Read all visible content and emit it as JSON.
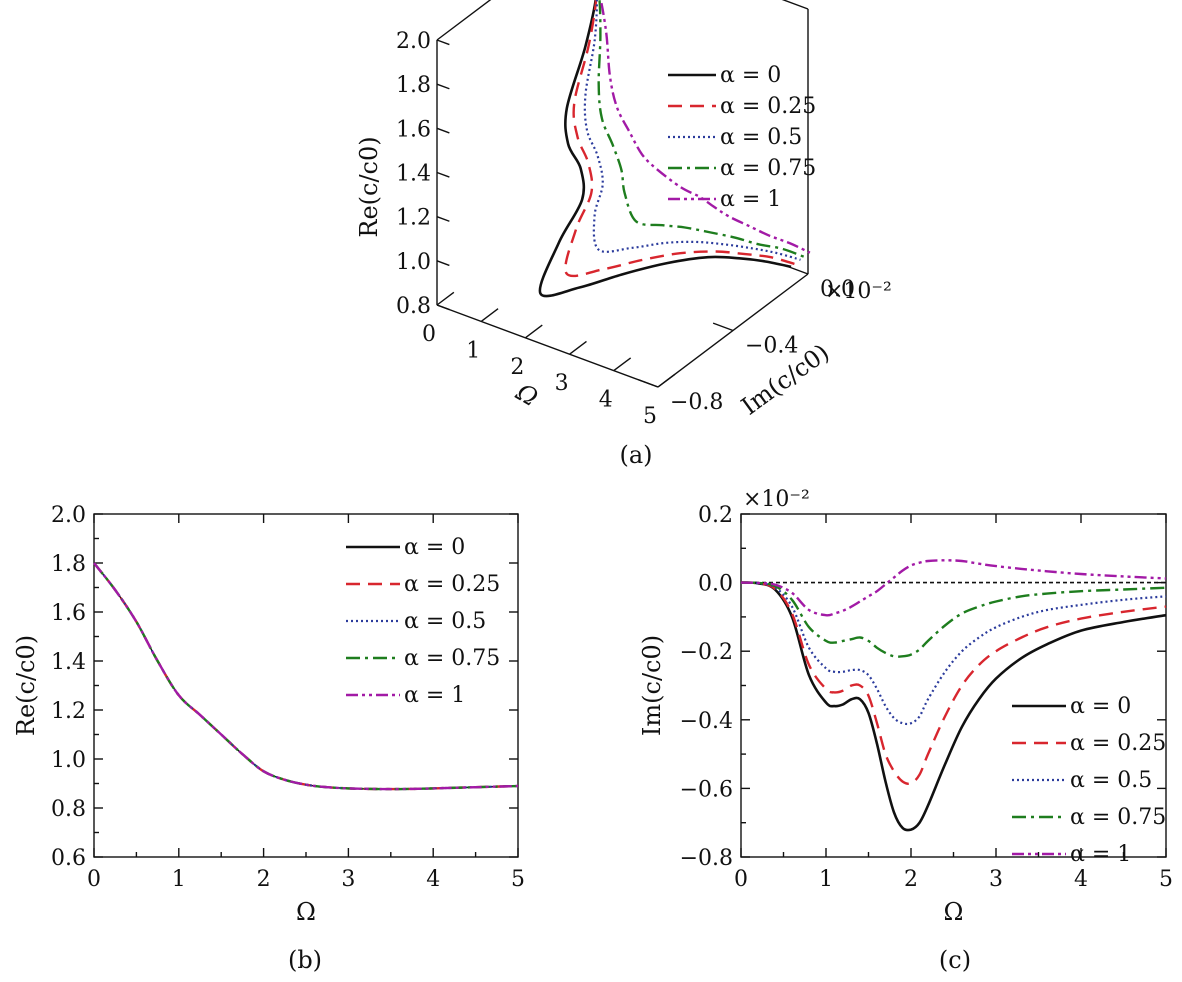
{
  "colors": {
    "alpha_0": "#111111",
    "alpha_0_25": "#d8262e",
    "alpha_0_5": "#2b3b9c",
    "alpha_0_75": "#1e7d1e",
    "alpha_1": "#a21aa6"
  },
  "captions": {
    "a": "(a)",
    "b": "(b)",
    "c": "(c)"
  },
  "chart_data": [
    {
      "id": "a",
      "type": "line",
      "projection": "3d",
      "zlabel": "Re(c/c0)",
      "xlabel": "Ω",
      "ylabel": "Im(c/c0)",
      "y_multiplier": "×10⁻²",
      "zlim": [
        0.8,
        2.0
      ],
      "xlim": [
        0,
        5
      ],
      "ylim": [
        -0.8,
        0.0
      ],
      "z_ticks": [
        "0.8",
        "1.0",
        "1.2",
        "1.4",
        "1.6",
        "1.8",
        "2.0"
      ],
      "x_ticks": [
        "0",
        "1",
        "2",
        "3",
        "4",
        "5"
      ],
      "y_ticks": [
        "0.0",
        "−0.4",
        "−0.8"
      ],
      "legend": [
        "α = 0",
        "α = 0.25",
        "α = 0.5",
        "α = 0.75",
        "α = 1"
      ],
      "legend_position": "top-right",
      "series": [
        {
          "name": "α = 0",
          "x": [
            0.05,
            0.3,
            0.6,
            0.9,
            1.1,
            1.3,
            1.5,
            1.7,
            2.0,
            2.3,
            2.6,
            3.0,
            3.5,
            4.0,
            4.5,
            5.0
          ],
          "y": [
            0.0,
            -0.02,
            -0.15,
            -0.32,
            -0.36,
            -0.34,
            -0.38,
            -0.55,
            -0.72,
            -0.58,
            -0.42,
            -0.28,
            -0.18,
            -0.13,
            -0.11,
            -0.09
          ],
          "z": [
            1.78,
            1.74,
            1.6,
            1.45,
            1.33,
            1.22,
            1.12,
            1.05,
            0.95,
            0.91,
            0.89,
            0.88,
            0.88,
            0.88,
            0.89,
            0.89
          ]
        },
        {
          "name": "α = 0.25",
          "x": [
            0.05,
            0.3,
            0.6,
            0.9,
            1.1,
            1.3,
            1.5,
            1.7,
            2.0,
            2.3,
            2.6,
            3.0,
            3.5,
            4.0,
            4.5,
            5.0
          ],
          "y": [
            0.0,
            -0.02,
            -0.13,
            -0.28,
            -0.31,
            -0.3,
            -0.33,
            -0.46,
            -0.58,
            -0.45,
            -0.32,
            -0.21,
            -0.14,
            -0.1,
            -0.08,
            -0.07
          ],
          "z": [
            1.78,
            1.74,
            1.6,
            1.45,
            1.33,
            1.22,
            1.12,
            1.05,
            0.95,
            0.91,
            0.89,
            0.88,
            0.88,
            0.88,
            0.89,
            0.89
          ]
        },
        {
          "name": "α = 0.5",
          "x": [
            0.05,
            0.3,
            0.6,
            0.9,
            1.1,
            1.3,
            1.5,
            1.7,
            2.0,
            2.3,
            2.6,
            3.0,
            3.5,
            4.0,
            4.5,
            5.0
          ],
          "y": [
            0.0,
            -0.02,
            -0.1,
            -0.22,
            -0.26,
            -0.25,
            -0.27,
            -0.36,
            -0.41,
            -0.3,
            -0.2,
            -0.13,
            -0.09,
            -0.06,
            -0.05,
            -0.04
          ],
          "z": [
            1.78,
            1.74,
            1.6,
            1.45,
            1.33,
            1.22,
            1.12,
            1.05,
            0.95,
            0.91,
            0.89,
            0.88,
            0.88,
            0.88,
            0.89,
            0.89
          ]
        },
        {
          "name": "α = 0.75",
          "x": [
            0.05,
            0.3,
            0.6,
            0.9,
            1.1,
            1.3,
            1.5,
            1.7,
            2.0,
            2.3,
            2.6,
            3.0,
            3.5,
            4.0,
            4.5,
            5.0
          ],
          "y": [
            0.0,
            -0.01,
            -0.07,
            -0.15,
            -0.18,
            -0.17,
            -0.17,
            -0.2,
            -0.21,
            -0.14,
            -0.09,
            -0.06,
            -0.04,
            -0.03,
            -0.02,
            -0.02
          ],
          "z": [
            1.78,
            1.74,
            1.6,
            1.45,
            1.33,
            1.22,
            1.12,
            1.05,
            0.95,
            0.91,
            0.89,
            0.88,
            0.88,
            0.88,
            0.89,
            0.89
          ]
        },
        {
          "name": "α = 1",
          "x": [
            0.05,
            0.3,
            0.6,
            0.9,
            1.1,
            1.3,
            1.5,
            1.7,
            2.0,
            2.3,
            2.6,
            3.0,
            3.5,
            4.0,
            4.5,
            5.0
          ],
          "y": [
            0.0,
            -0.01,
            -0.04,
            -0.09,
            -0.1,
            -0.08,
            -0.06,
            -0.03,
            0.03,
            0.06,
            0.06,
            0.05,
            0.04,
            0.03,
            0.02,
            0.01
          ],
          "z": [
            1.78,
            1.74,
            1.6,
            1.45,
            1.33,
            1.22,
            1.12,
            1.05,
            0.95,
            0.91,
            0.89,
            0.88,
            0.88,
            0.88,
            0.89,
            0.89
          ]
        }
      ]
    },
    {
      "id": "b",
      "type": "line",
      "xlabel": "Ω",
      "ylabel": "Re(c/c0)",
      "xlim": [
        0,
        5
      ],
      "ylim": [
        0.6,
        2.0
      ],
      "x_ticks": [
        "0",
        "1",
        "2",
        "3",
        "4",
        "5"
      ],
      "y_ticks": [
        "0.6",
        "0.8",
        "1.0",
        "1.2",
        "1.4",
        "1.6",
        "1.8",
        "2.0"
      ],
      "legend": [
        "α = 0",
        "α = 0.25",
        "α = 0.5",
        "α = 0.75",
        "α = 1"
      ],
      "legend_position": "top-right",
      "x": [
        0,
        0.25,
        0.5,
        0.75,
        1.0,
        1.25,
        1.5,
        1.75,
        2.0,
        2.25,
        2.5,
        2.75,
        3.0,
        3.25,
        3.5,
        3.75,
        4.0,
        4.5,
        5.0
      ],
      "series": [
        {
          "name": "α = 0",
          "values": [
            1.8,
            1.69,
            1.56,
            1.4,
            1.26,
            1.18,
            1.1,
            1.02,
            0.95,
            0.915,
            0.895,
            0.885,
            0.88,
            0.878,
            0.877,
            0.878,
            0.88,
            0.885,
            0.89
          ]
        },
        {
          "name": "α = 0.25",
          "values": [
            1.8,
            1.69,
            1.56,
            1.4,
            1.26,
            1.18,
            1.1,
            1.02,
            0.95,
            0.915,
            0.895,
            0.885,
            0.88,
            0.878,
            0.877,
            0.878,
            0.88,
            0.885,
            0.89
          ]
        },
        {
          "name": "α = 0.5",
          "values": [
            1.8,
            1.69,
            1.56,
            1.4,
            1.26,
            1.18,
            1.1,
            1.02,
            0.95,
            0.915,
            0.895,
            0.885,
            0.88,
            0.878,
            0.877,
            0.878,
            0.88,
            0.885,
            0.89
          ]
        },
        {
          "name": "α = 0.75",
          "values": [
            1.8,
            1.69,
            1.56,
            1.4,
            1.26,
            1.18,
            1.1,
            1.02,
            0.95,
            0.915,
            0.895,
            0.885,
            0.88,
            0.878,
            0.877,
            0.878,
            0.88,
            0.885,
            0.89
          ]
        },
        {
          "name": "α = 1",
          "values": [
            1.8,
            1.69,
            1.56,
            1.4,
            1.26,
            1.18,
            1.1,
            1.02,
            0.95,
            0.915,
            0.895,
            0.885,
            0.88,
            0.878,
            0.877,
            0.878,
            0.88,
            0.885,
            0.89
          ]
        }
      ]
    },
    {
      "id": "c",
      "type": "line",
      "xlabel": "Ω",
      "ylabel": "Im(c/c0)",
      "y_multiplier": "×10⁻²",
      "xlim": [
        0,
        5
      ],
      "ylim": [
        -0.8,
        0.2
      ],
      "x_ticks": [
        "0",
        "1",
        "2",
        "3",
        "4",
        "5"
      ],
      "y_ticks": [
        "−0.8",
        "−0.6",
        "−0.4",
        "−0.2",
        "0.0",
        "0.2"
      ],
      "reference_line_y": 0.0,
      "legend": [
        "α = 0",
        "α = 0.25",
        "α = 0.5",
        "α = 0.75",
        "α = 1"
      ],
      "legend_position": "bottom-right",
      "x": [
        0,
        0.2,
        0.4,
        0.6,
        0.8,
        1.0,
        1.1,
        1.2,
        1.3,
        1.4,
        1.5,
        1.6,
        1.7,
        1.8,
        1.9,
        2.0,
        2.1,
        2.2,
        2.4,
        2.6,
        2.8,
        3.0,
        3.3,
        3.6,
        4.0,
        4.5,
        5.0
      ],
      "series": [
        {
          "name": "α = 0",
          "values": [
            0.0,
            -0.002,
            -0.02,
            -0.1,
            -0.27,
            -0.35,
            -0.36,
            -0.355,
            -0.34,
            -0.34,
            -0.38,
            -0.47,
            -0.58,
            -0.67,
            -0.715,
            -0.72,
            -0.7,
            -0.65,
            -0.53,
            -0.42,
            -0.34,
            -0.28,
            -0.22,
            -0.18,
            -0.14,
            -0.115,
            -0.095
          ]
        },
        {
          "name": "α = 0.25",
          "values": [
            0.0,
            -0.002,
            -0.018,
            -0.09,
            -0.24,
            -0.31,
            -0.32,
            -0.315,
            -0.3,
            -0.3,
            -0.33,
            -0.41,
            -0.5,
            -0.55,
            -0.58,
            -0.585,
            -0.56,
            -0.5,
            -0.39,
            -0.3,
            -0.24,
            -0.2,
            -0.16,
            -0.13,
            -0.105,
            -0.085,
            -0.07
          ]
        },
        {
          "name": "α = 0.5",
          "values": [
            0.0,
            -0.002,
            -0.014,
            -0.07,
            -0.19,
            -0.25,
            -0.26,
            -0.26,
            -0.255,
            -0.255,
            -0.27,
            -0.31,
            -0.36,
            -0.395,
            -0.41,
            -0.41,
            -0.39,
            -0.34,
            -0.26,
            -0.2,
            -0.16,
            -0.13,
            -0.1,
            -0.08,
            -0.065,
            -0.05,
            -0.04
          ]
        },
        {
          "name": "α = 0.75",
          "values": [
            0.0,
            -0.001,
            -0.01,
            -0.05,
            -0.13,
            -0.17,
            -0.175,
            -0.17,
            -0.165,
            -0.16,
            -0.17,
            -0.19,
            -0.205,
            -0.215,
            -0.215,
            -0.21,
            -0.195,
            -0.17,
            -0.125,
            -0.09,
            -0.07,
            -0.055,
            -0.04,
            -0.032,
            -0.025,
            -0.02,
            -0.015
          ]
        },
        {
          "name": "α = 1",
          "values": [
            0.0,
            -0.001,
            -0.006,
            -0.03,
            -0.08,
            -0.095,
            -0.09,
            -0.082,
            -0.07,
            -0.055,
            -0.04,
            -0.025,
            -0.005,
            0.015,
            0.035,
            0.05,
            0.058,
            0.063,
            0.065,
            0.063,
            0.055,
            0.048,
            0.04,
            0.033,
            0.025,
            0.018,
            0.012
          ]
        }
      ]
    }
  ]
}
